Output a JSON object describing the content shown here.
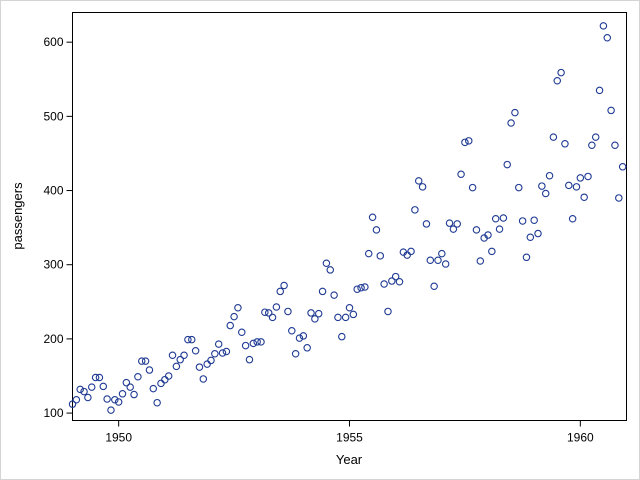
{
  "chart_data": {
    "type": "scatter",
    "title": "",
    "xlabel": "Year",
    "ylabel": "passengers",
    "xlim": [
      1949,
      1961
    ],
    "ylim": [
      90,
      640
    ],
    "xticks": [
      1950,
      1955,
      1960
    ],
    "yticks": [
      100,
      200,
      300,
      400,
      500,
      600
    ],
    "grid": false,
    "marker_color": "#1f3a93",
    "series": [
      {
        "x_start": 1949,
        "x_step": 0.0833333,
        "y": [
          112,
          118,
          132,
          129,
          121,
          135,
          148,
          148,
          136,
          119,
          104,
          118,
          115,
          126,
          141,
          135,
          125,
          149,
          170,
          170,
          158,
          133,
          114,
          140,
          145,
          150,
          178,
          163,
          172,
          178,
          199,
          199,
          184,
          162,
          146,
          166,
          171,
          180,
          193,
          181,
          183,
          218,
          230,
          242,
          209,
          191,
          172,
          194,
          196,
          196,
          236,
          235,
          229,
          243,
          264,
          272,
          237,
          211,
          180,
          201,
          204,
          188,
          235,
          227,
          234,
          264,
          302,
          293,
          259,
          229,
          203,
          229,
          242,
          233,
          267,
          269,
          270,
          315,
          364,
          347,
          312,
          274,
          237,
          278,
          284,
          277,
          317,
          313,
          318,
          374,
          413,
          405,
          355,
          306,
          271,
          306,
          315,
          301,
          356,
          348,
          355,
          422,
          465,
          467,
          404,
          347,
          305,
          336,
          340,
          318,
          362,
          348,
          363,
          435,
          491,
          505,
          404,
          359,
          310,
          337,
          360,
          342,
          406,
          396,
          420,
          472,
          548,
          559,
          463,
          407,
          362,
          405,
          417,
          391,
          419,
          461,
          472,
          535,
          622,
          606,
          508,
          461,
          390,
          432
        ]
      }
    ]
  }
}
